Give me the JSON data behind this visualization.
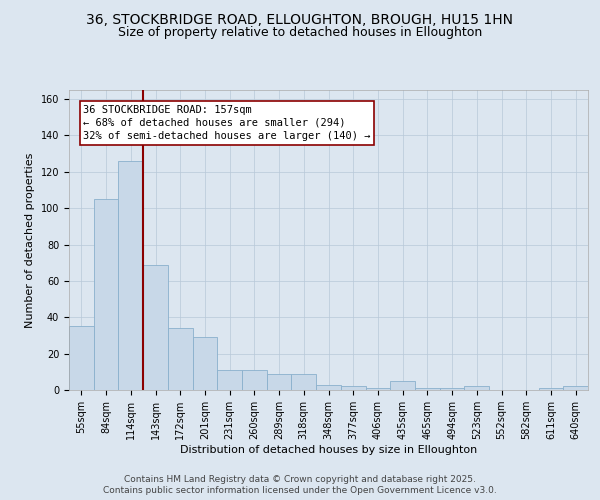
{
  "title_line1": "36, STOCKBRIDGE ROAD, ELLOUGHTON, BROUGH, HU15 1HN",
  "title_line2": "Size of property relative to detached houses in Elloughton",
  "xlabel": "Distribution of detached houses by size in Elloughton",
  "ylabel": "Number of detached properties",
  "categories": [
    "55sqm",
    "84sqm",
    "114sqm",
    "143sqm",
    "172sqm",
    "201sqm",
    "231sqm",
    "260sqm",
    "289sqm",
    "318sqm",
    "348sqm",
    "377sqm",
    "406sqm",
    "435sqm",
    "465sqm",
    "494sqm",
    "523sqm",
    "552sqm",
    "582sqm",
    "611sqm",
    "640sqm"
  ],
  "values": [
    35,
    105,
    126,
    69,
    34,
    29,
    11,
    11,
    9,
    9,
    3,
    2,
    1,
    5,
    1,
    1,
    2,
    0,
    0,
    1,
    2
  ],
  "bar_color": "#c8d8e8",
  "bar_edge_color": "#8ab0cc",
  "vline_x": 2.5,
  "vline_color": "#8b0000",
  "ylim": [
    0,
    165
  ],
  "yticks": [
    0,
    20,
    40,
    60,
    80,
    100,
    120,
    140,
    160
  ],
  "annotation_line1": "36 STOCKBRIDGE ROAD: 157sqm",
  "annotation_line2": "← 68% of detached houses are smaller (294)",
  "annotation_line3": "32% of semi-detached houses are larger (140) →",
  "annotation_box_color": "#8b0000",
  "annotation_box_bg": "#ffffff",
  "footer_line1": "Contains HM Land Registry data © Crown copyright and database right 2025.",
  "footer_line2": "Contains public sector information licensed under the Open Government Licence v3.0.",
  "fig_bg_color": "#dce6f0",
  "plot_bg_color": "#dce6f0",
  "grid_color": "#b8c8d8",
  "title_fontsize": 10,
  "subtitle_fontsize": 9,
  "ylabel_fontsize": 8,
  "xlabel_fontsize": 8,
  "tick_fontsize": 7,
  "annotation_fontsize": 7.5,
  "footer_fontsize": 6.5
}
